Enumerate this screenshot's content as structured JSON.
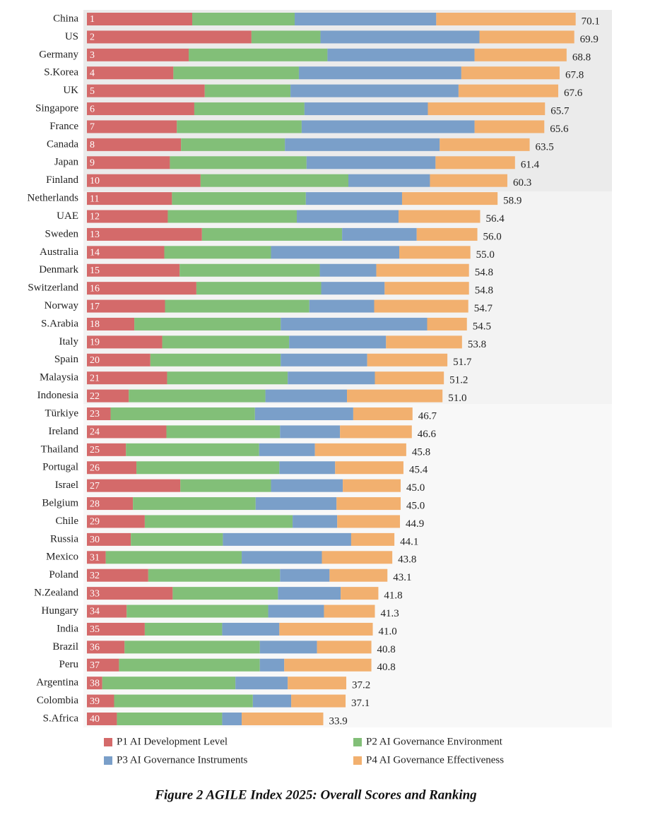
{
  "chart_data": {
    "type": "stacked-barh",
    "caption": "Figure 2 AGILE Index 2025: Overall Scores and Ranking",
    "categories": [
      "China",
      "US",
      "Germany",
      "S.Korea",
      "UK",
      "Singapore",
      "France",
      "Canada",
      "Japan",
      "Finland",
      "Netherlands",
      "UAE",
      "Sweden",
      "Australia",
      "Denmark",
      "Switzerland",
      "Norway",
      "S.Arabia",
      "Italy",
      "Spain",
      "Malaysia",
      "Indonesia",
      "Türkiye",
      "Ireland",
      "Thailand",
      "Portugal",
      "Israel",
      "Belgium",
      "Chile",
      "Russia",
      "Mexico",
      "Poland",
      "N.Zealand",
      "Hungary",
      "India",
      "Brazil",
      "Peru",
      "Argentina",
      "Colombia",
      "S.Africa"
    ],
    "ranks": [
      "1",
      "2",
      "3",
      "4",
      "5",
      "6",
      "7",
      "8",
      "9",
      "10",
      "11",
      "12",
      "13",
      "14",
      "15",
      "16",
      "17",
      "18",
      "19",
      "20",
      "21",
      "22",
      "23",
      "24",
      "25",
      "26",
      "27",
      "28",
      "29",
      "30",
      "31",
      "32",
      "33",
      "34",
      "35",
      "36",
      "37",
      "38",
      "39",
      "40"
    ],
    "xlim": [
      0,
      75
    ],
    "series": [
      {
        "name": "P1 AI Development Level",
        "color": "#d46a6a",
        "values": [
          15.1,
          23.6,
          14.6,
          12.4,
          16.9,
          15.4,
          12.9,
          13.5,
          11.9,
          16.3,
          12.2,
          11.6,
          16.5,
          11.1,
          13.3,
          15.7,
          11.2,
          6.8,
          10.8,
          9.1,
          11.5,
          6.0,
          3.4,
          11.4,
          5.6,
          7.1,
          13.4,
          6.6,
          8.3,
          6.3,
          2.7,
          8.8,
          12.3,
          5.7,
          8.3,
          5.4,
          4.6,
          2.2,
          3.9,
          4.3
        ]
      },
      {
        "name": "P2 AI Governance Environment",
        "color": "#82bf78",
        "values": [
          14.7,
          9.9,
          19.9,
          18.0,
          12.3,
          15.8,
          17.9,
          14.9,
          19.6,
          21.2,
          19.2,
          18.5,
          20.1,
          15.3,
          20.1,
          17.9,
          20.7,
          21.0,
          18.2,
          18.7,
          17.3,
          19.6,
          20.7,
          16.3,
          19.1,
          20.5,
          13.0,
          17.6,
          21.2,
          13.2,
          19.5,
          18.9,
          15.1,
          20.3,
          11.1,
          19.4,
          20.2,
          19.1,
          19.9,
          15.1
        ]
      },
      {
        "name": "P3 AI Governance Instruments",
        "color": "#7a9fc9",
        "values": [
          20.3,
          22.8,
          21.1,
          23.3,
          24.1,
          17.7,
          24.8,
          22.2,
          18.5,
          11.7,
          13.8,
          14.6,
          10.7,
          18.4,
          8.1,
          9.1,
          9.3,
          21.0,
          13.9,
          12.4,
          12.5,
          11.7,
          14.1,
          8.6,
          8.0,
          8.0,
          10.3,
          11.6,
          6.4,
          18.4,
          11.5,
          7.1,
          9.0,
          8.0,
          8.2,
          8.2,
          3.5,
          7.5,
          5.5,
          2.8
        ]
      },
      {
        "name": "P4 AI Governance Effectiveness",
        "color": "#f2b06f",
        "values": [
          20.0,
          13.6,
          13.2,
          14.1,
          14.3,
          16.8,
          10.0,
          12.9,
          11.4,
          11.1,
          13.7,
          11.7,
          8.7,
          10.2,
          13.3,
          12.1,
          13.5,
          5.7,
          10.9,
          11.5,
          9.9,
          13.7,
          8.5,
          10.3,
          13.1,
          9.8,
          8.3,
          9.2,
          9.0,
          6.2,
          10.1,
          8.3,
          5.4,
          7.3,
          13.4,
          7.8,
          12.5,
          8.4,
          7.8,
          11.7
        ]
      }
    ],
    "totals": [
      70.1,
      69.9,
      68.8,
      67.8,
      67.6,
      65.7,
      65.6,
      63.5,
      61.4,
      60.3,
      58.9,
      56.4,
      56.0,
      55.0,
      54.8,
      54.8,
      54.7,
      54.5,
      53.8,
      51.7,
      51.2,
      51.0,
      46.7,
      46.6,
      45.8,
      45.4,
      45.0,
      45.0,
      44.9,
      44.1,
      43.8,
      43.1,
      41.8,
      41.3,
      41.0,
      40.8,
      40.8,
      37.2,
      37.1,
      33.9
    ],
    "total_labels": [
      "70.1",
      "69.9",
      "68.8",
      "67.8",
      "67.6",
      "65.7",
      "65.6",
      "63.5",
      "61.4",
      "60.3",
      "58.9",
      "56.4",
      "56.0",
      "55.0",
      "54.8",
      "54.8",
      "54.7",
      "54.5",
      "53.8",
      "51.7",
      "51.2",
      "51.0",
      "46.7",
      "46.6",
      "45.8",
      "45.4",
      "45.0",
      "45.0",
      "44.9",
      "44.1",
      "43.8",
      "43.1",
      "41.8",
      "41.3",
      "41.0",
      "40.8",
      "40.8",
      "37.2",
      "37.1",
      "33.9"
    ]
  }
}
